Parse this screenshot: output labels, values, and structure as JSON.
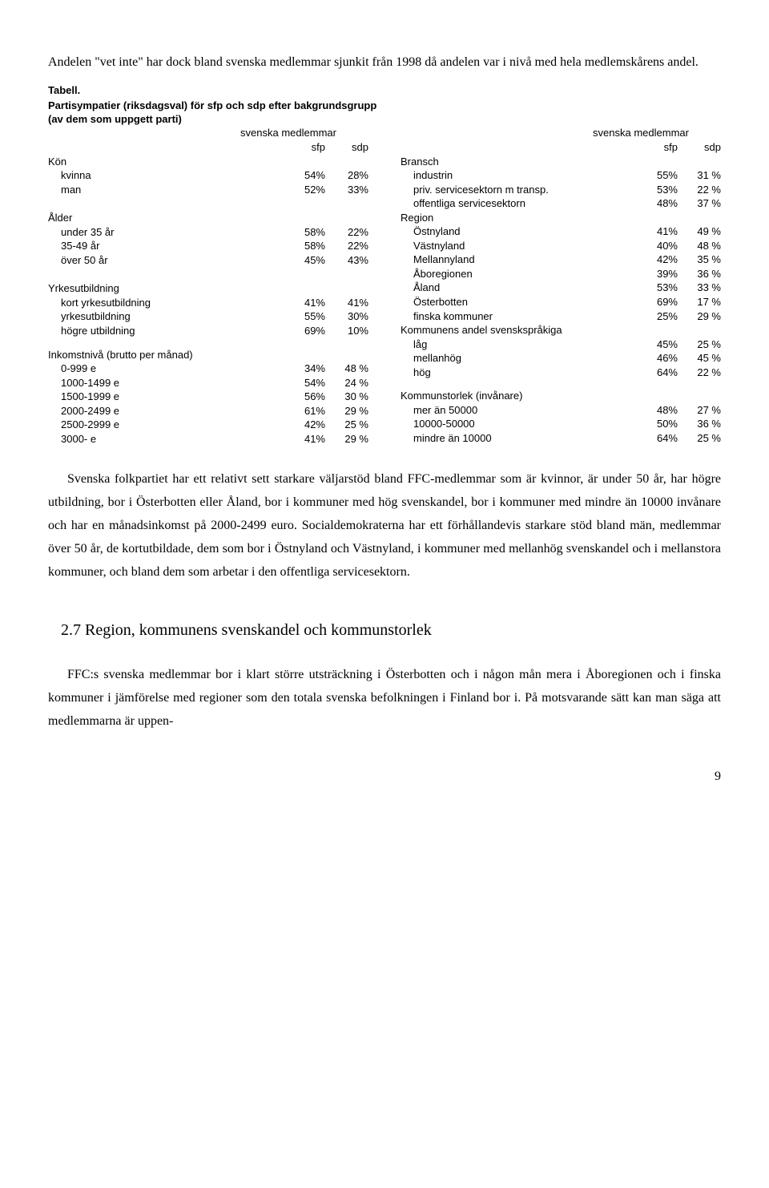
{
  "intro": "Andelen \"vet inte\" har dock bland svenska medlemmar sjunkit från 1998 då andelen var i nivå med hela medlemskårens andel.",
  "table_label": "Tabell.",
  "table_title_l1": "Partisympatier (riksdagsval) för sfp och sdp efter bakgrundsgrupp",
  "table_title_l2": "(av dem som uppgett parti)",
  "header_left": "svenska medlemmar",
  "header_right": "svenska medlemmar",
  "col1": "sfp",
  "col2": "sdp",
  "left": {
    "g1": {
      "head": "Kön",
      "rows": [
        {
          "l": "kvinna",
          "a": "54%",
          "b": "28%"
        },
        {
          "l": "man",
          "a": "52%",
          "b": "33%"
        }
      ]
    },
    "g2": {
      "head": "Ålder",
      "rows": [
        {
          "l": "under 35 år",
          "a": "58%",
          "b": "22%"
        },
        {
          "l": "35-49 år",
          "a": "58%",
          "b": "22%"
        },
        {
          "l": "över 50 år",
          "a": "45%",
          "b": "43%"
        }
      ]
    },
    "g3": {
      "head": "Yrkesutbildning",
      "rows": [
        {
          "l": "kort yrkesutbildning",
          "a": "41%",
          "b": "41%"
        },
        {
          "l": "yrkesutbildning",
          "a": "55%",
          "b": "30%"
        },
        {
          "l": "högre utbildning",
          "a": "69%",
          "b": "10%"
        }
      ]
    },
    "g4": {
      "head": "Inkomstnivå (brutto per månad)",
      "rows": [
        {
          "l": "0-999 e",
          "a": "34%",
          "b": "48 %"
        },
        {
          "l": "1000-1499 e",
          "a": "54%",
          "b": "24 %"
        },
        {
          "l": "1500-1999 e",
          "a": "56%",
          "b": "30 %"
        },
        {
          "l": "2000-2499 e",
          "a": "61%",
          "b": "29 %"
        },
        {
          "l": "2500-2999 e",
          "a": "42%",
          "b": "25 %"
        },
        {
          "l": "3000-  e",
          "a": "41%",
          "b": "29 %"
        }
      ]
    }
  },
  "right": {
    "g1": {
      "head": "Bransch",
      "rows": [
        {
          "l": "industrin",
          "a": "55%",
          "b": "31 %"
        },
        {
          "l": "priv. servicesektorn m transp.",
          "a": "53%",
          "b": "22 %"
        },
        {
          "l": "offentliga servicesektorn",
          "a": "48%",
          "b": "37 %"
        }
      ]
    },
    "g2": {
      "head": "Region",
      "rows": [
        {
          "l": "Östnyland",
          "a": "41%",
          "b": "49 %"
        },
        {
          "l": "Västnyland",
          "a": "40%",
          "b": "48 %"
        },
        {
          "l": "Mellannyland",
          "a": "42%",
          "b": "35 %"
        },
        {
          "l": "Åboregionen",
          "a": "39%",
          "b": "36 %"
        },
        {
          "l": "Åland",
          "a": "53%",
          "b": "33 %"
        },
        {
          "l": "Österbotten",
          "a": "69%",
          "b": "17 %"
        },
        {
          "l": "finska kommuner",
          "a": "25%",
          "b": "29 %"
        }
      ]
    },
    "g3": {
      "head": "Kommunens andel svenskspråkiga",
      "rows": [
        {
          "l": "låg",
          "a": "45%",
          "b": "25 %"
        },
        {
          "l": "mellanhög",
          "a": "46%",
          "b": "45 %"
        },
        {
          "l": "hög",
          "a": "64%",
          "b": "22 %"
        }
      ]
    },
    "g4": {
      "head": "Kommunstorlek (invånare)",
      "rows": [
        {
          "l": "mer än 50000",
          "a": "48%",
          "b": "27 %"
        },
        {
          "l": "10000-50000",
          "a": "50%",
          "b": "36 %"
        },
        {
          "l": "mindre än 10000",
          "a": "64%",
          "b": "25 %"
        }
      ]
    }
  },
  "para1": "Svenska folkpartiet har ett relativt sett starkare väljarstöd bland FFC-medlemmar som är kvinnor, är under 50 år, har högre utbildning, bor i Österbotten eller Åland, bor i kommuner med hög svenskandel, bor i kommuner med mindre än 10000 invånare och har en månads­inkomst på 2000-2499 euro. Socialdemokraterna har ett förhållandevis starkare stöd bland män, medlemmar över 50 år, de kortutbildade, dem som bor i Östnyland och Västnyland, i kommuner med mellanhög svenskandel och i mellanstora kommuner, och bland dem som arbetar i den offentliga servicesektorn.",
  "section_heading": "2.7  Region, kommunens svenskandel och kommunstorlek",
  "para2": "FFC:s svenska medlemmar bor i klart större utsträckning i Österbotten och i någon mån mera i Åboregionen och i finska kommuner i jämförelse med regioner som den totala svenska befolkningen i Finland bor i. På motsvarande sätt kan man säga att medlemmarna är uppen-",
  "page_number": "9"
}
